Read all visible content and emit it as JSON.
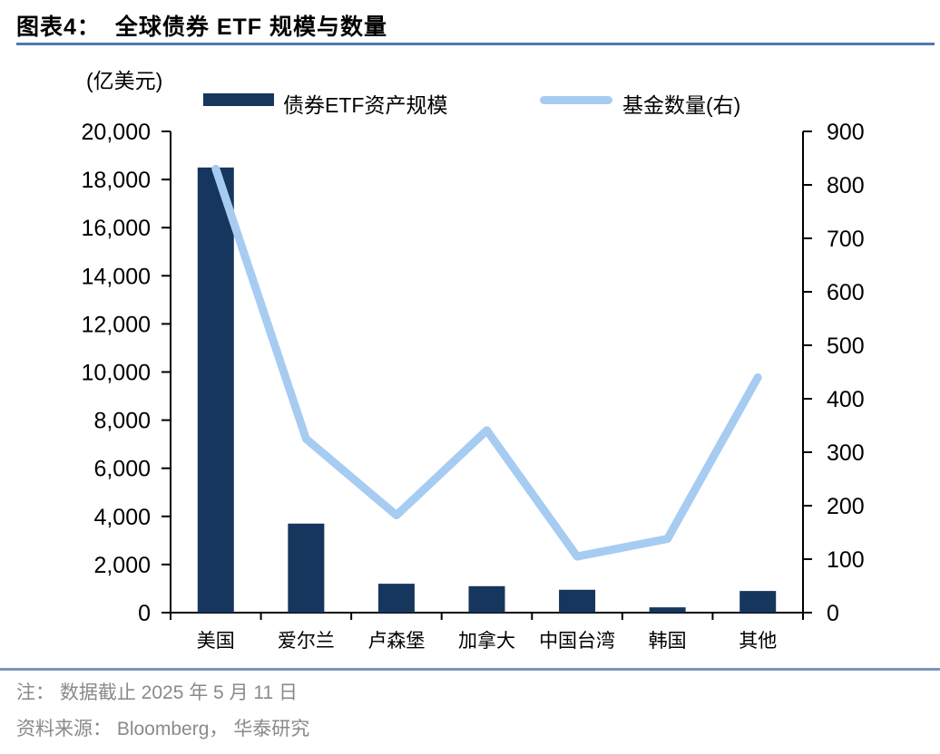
{
  "page": {
    "title_prefix": "图表4：",
    "title_text": "全球债券 ETF 规模与数量",
    "footer": {
      "note": "注： 数据截止 2025 年 5 月 11 日",
      "source": "资料来源： Bloomberg， 华泰研究"
    }
  },
  "colors": {
    "bar": "#17365D",
    "line": "#A7CCF2",
    "axis": "#000000",
    "title_rule": "#4E79B2",
    "footer_rule": "#7B94BD",
    "footer_text": "#8A8A8A",
    "text": "#000000"
  },
  "chart_data": {
    "type": "bar",
    "title": "全球债券 ETF 规模与数量",
    "unit_label": "(亿美元)",
    "categories": [
      "美国",
      "爱尔兰",
      "卢森堡",
      "加拿大",
      "中国台湾",
      "韩国",
      "其他"
    ],
    "series": [
      {
        "name": "债券ETF资产规模",
        "type": "bar",
        "axis": "left",
        "values": [
          18500,
          3700,
          1200,
          1100,
          950,
          220,
          900
        ]
      },
      {
        "name": "基金数量(右)",
        "type": "line",
        "axis": "right",
        "values": [
          830,
          325,
          182,
          341,
          105,
          138,
          440
        ]
      }
    ],
    "left_axis": {
      "min": 0,
      "max": 20000,
      "step": 2000,
      "tick_labels": [
        "0",
        "2,000",
        "4,000",
        "6,000",
        "8,000",
        "10,000",
        "12,000",
        "14,000",
        "16,000",
        "18,000",
        "20,000"
      ]
    },
    "right_axis": {
      "min": 0,
      "max": 900,
      "step": 100,
      "tick_labels": [
        "0",
        "100",
        "200",
        "300",
        "400",
        "500",
        "600",
        "700",
        "800",
        "900"
      ]
    },
    "legend_position": "top",
    "grid": false
  }
}
